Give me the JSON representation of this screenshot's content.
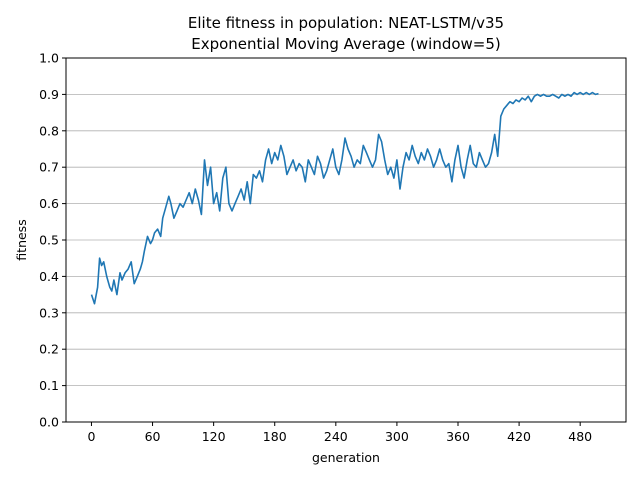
{
  "chart_data": {
    "type": "line",
    "title": "Elite fitness in population: NEAT-LSTM/v35",
    "subtitle": "Exponential Moving Average (window=5)",
    "xlabel": "generation",
    "ylabel": "fitness",
    "xlim": [
      -25,
      525
    ],
    "ylim": [
      0.0,
      1.0
    ],
    "xticks": [
      0,
      60,
      120,
      180,
      240,
      300,
      360,
      420,
      480
    ],
    "yticks": [
      0.0,
      0.1,
      0.2,
      0.3,
      0.4,
      0.5,
      0.6,
      0.7,
      0.8,
      0.9,
      1.0
    ],
    "ytick_labels": [
      "0.0",
      "0.1",
      "0.2",
      "0.3",
      "0.4",
      "0.5",
      "0.6",
      "0.7",
      "0.8",
      "0.9",
      "1.0"
    ],
    "grid": "horizontal",
    "line_color": "#1f77b4",
    "series": [
      {
        "x": [
          0,
          3,
          6,
          8,
          10,
          12,
          15,
          18,
          20,
          22,
          25,
          28,
          30,
          33,
          36,
          39,
          42,
          45,
          48,
          50,
          52,
          55,
          58,
          60,
          62,
          65,
          68,
          70,
          73,
          76,
          78,
          81,
          84,
          87,
          90,
          93,
          96,
          99,
          102,
          105,
          108,
          111,
          114,
          117,
          120,
          123,
          126,
          129,
          132,
          135,
          138,
          141,
          144,
          147,
          150,
          153,
          156,
          159,
          162,
          165,
          168,
          171,
          174,
          177,
          180,
          183,
          186,
          189,
          192,
          195,
          198,
          201,
          204,
          207,
          210,
          213,
          216,
          219,
          222,
          225,
          228,
          231,
          234,
          237,
          240,
          243,
          246,
          249,
          252,
          255,
          258,
          261,
          264,
          267,
          270,
          273,
          276,
          279,
          282,
          285,
          288,
          291,
          294,
          297,
          300,
          303,
          306,
          309,
          312,
          315,
          318,
          321,
          324,
          327,
          330,
          333,
          336,
          339,
          342,
          345,
          348,
          351,
          354,
          357,
          360,
          363,
          366,
          369,
          372,
          375,
          378,
          381,
          384,
          387,
          390,
          393,
          396,
          399,
          402,
          405,
          408,
          411,
          414,
          417,
          420,
          423,
          426,
          429,
          432,
          435,
          438,
          441,
          444,
          447,
          450,
          453,
          456,
          459,
          462,
          465,
          468,
          471,
          474,
          477,
          480,
          483,
          486,
          489,
          492,
          495,
          498
        ],
        "y": [
          0.35,
          0.325,
          0.37,
          0.45,
          0.43,
          0.44,
          0.4,
          0.37,
          0.36,
          0.39,
          0.35,
          0.41,
          0.39,
          0.41,
          0.42,
          0.44,
          0.38,
          0.4,
          0.42,
          0.44,
          0.47,
          0.51,
          0.49,
          0.5,
          0.52,
          0.53,
          0.51,
          0.56,
          0.59,
          0.62,
          0.6,
          0.56,
          0.58,
          0.6,
          0.59,
          0.61,
          0.63,
          0.6,
          0.64,
          0.61,
          0.57,
          0.72,
          0.65,
          0.7,
          0.6,
          0.63,
          0.58,
          0.67,
          0.7,
          0.6,
          0.58,
          0.6,
          0.62,
          0.64,
          0.61,
          0.66,
          0.6,
          0.68,
          0.67,
          0.69,
          0.66,
          0.72,
          0.75,
          0.71,
          0.74,
          0.72,
          0.76,
          0.73,
          0.68,
          0.7,
          0.72,
          0.69,
          0.71,
          0.7,
          0.66,
          0.72,
          0.7,
          0.68,
          0.73,
          0.71,
          0.67,
          0.69,
          0.72,
          0.75,
          0.7,
          0.68,
          0.72,
          0.78,
          0.75,
          0.73,
          0.7,
          0.72,
          0.71,
          0.76,
          0.74,
          0.72,
          0.7,
          0.72,
          0.79,
          0.77,
          0.72,
          0.68,
          0.7,
          0.67,
          0.72,
          0.64,
          0.7,
          0.74,
          0.72,
          0.76,
          0.73,
          0.71,
          0.74,
          0.72,
          0.75,
          0.73,
          0.7,
          0.72,
          0.75,
          0.72,
          0.7,
          0.71,
          0.66,
          0.72,
          0.76,
          0.7,
          0.67,
          0.72,
          0.76,
          0.71,
          0.7,
          0.74,
          0.72,
          0.7,
          0.71,
          0.74,
          0.79,
          0.73,
          0.84,
          0.86,
          0.87,
          0.88,
          0.875,
          0.885,
          0.88,
          0.89,
          0.885,
          0.895,
          0.88,
          0.895,
          0.9,
          0.895,
          0.9,
          0.895,
          0.895,
          0.9,
          0.895,
          0.89,
          0.9,
          0.895,
          0.9,
          0.895,
          0.905,
          0.9,
          0.905,
          0.9,
          0.905,
          0.9,
          0.905,
          0.9,
          0.902
        ]
      }
    ]
  }
}
